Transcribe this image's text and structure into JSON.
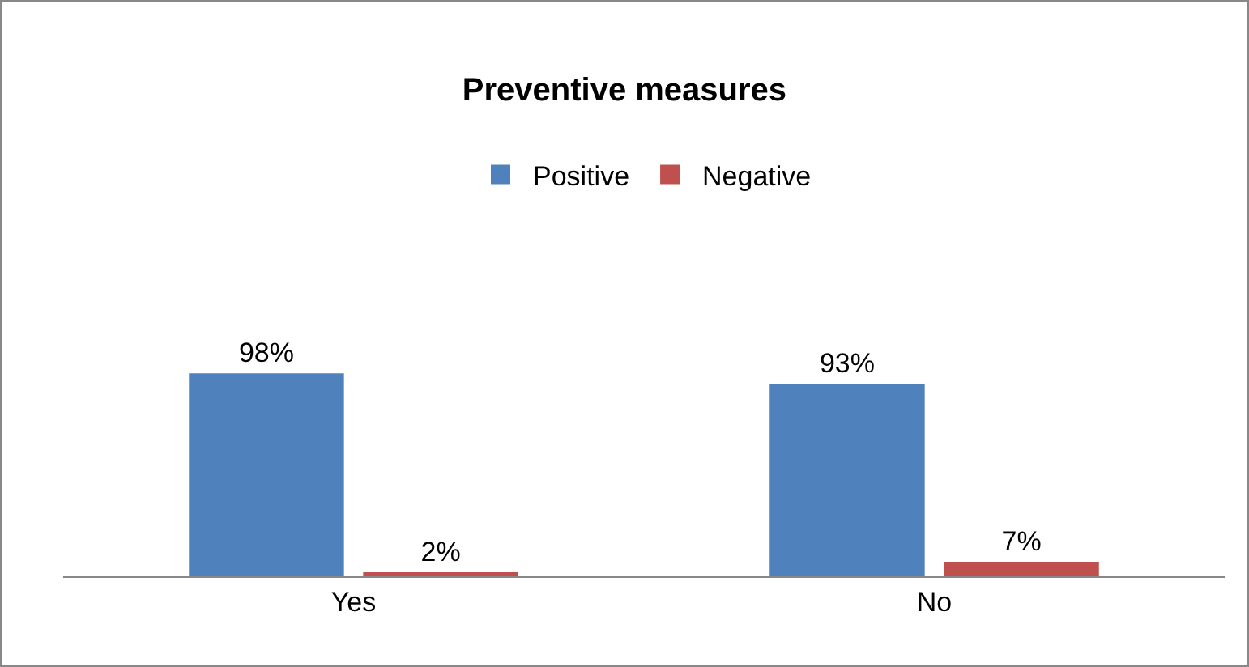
{
  "chart_data": {
    "type": "bar",
    "title": "Preventive measures",
    "categories": [
      "Yes",
      "No"
    ],
    "series": [
      {
        "name": "Positive",
        "color": "#4f81bd",
        "values": [
          98,
          93
        ],
        "value_labels": [
          "98%",
          "93%"
        ]
      },
      {
        "name": "Negative",
        "color": "#c0504d",
        "values": [
          2,
          7
        ],
        "value_labels": [
          "2%",
          "7%"
        ]
      }
    ],
    "legend": "top",
    "grid": false
  }
}
